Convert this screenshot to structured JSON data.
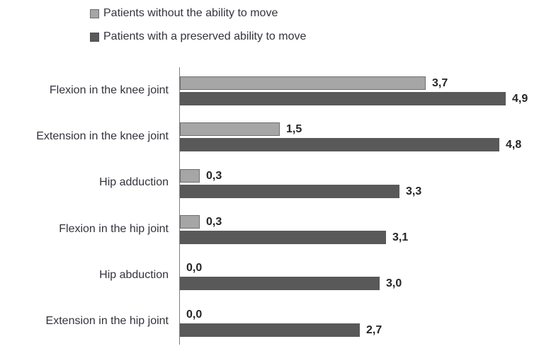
{
  "colors": {
    "background": "#ffffff",
    "text": "#33333d",
    "value_text": "#262626",
    "axis_line": "#808080"
  },
  "chart_data": {
    "type": "bar",
    "orientation": "horizontal",
    "title": "",
    "xlabel": "",
    "ylabel": "",
    "categories": [
      "Flexion in the knee joint",
      "Extension in the knee joint",
      "Hip adduction",
      "Flexion in the hip joint",
      "Hip abduction",
      "Extension in the hip joint"
    ],
    "series": [
      {
        "name": "Patients without the ability to move",
        "color": "#a6a6a6",
        "border_color": "#6e6e6e",
        "values": [
          3.7,
          1.5,
          0.3,
          0.3,
          0.0,
          0.0
        ],
        "value_labels": [
          "3,7",
          "1,5",
          "0,3",
          "0,3",
          "0,0",
          "0,0"
        ]
      },
      {
        "name": "Patients with a preserved ability to move",
        "color": "#595959",
        "border_color": "#4d4d4d",
        "values": [
          4.9,
          4.8,
          3.3,
          3.1,
          3.0,
          2.7
        ],
        "value_labels": [
          "4,9",
          "4,8",
          "3,3",
          "3,1",
          "3,0",
          "2,7"
        ]
      }
    ],
    "xlim": [
      0,
      5.2
    ],
    "value_label_decimal_separator": ",",
    "grid": false,
    "axis": {
      "y_axis_line": true,
      "x_axis_line": false,
      "tick_labels": false
    },
    "legend_position": "top-left"
  }
}
